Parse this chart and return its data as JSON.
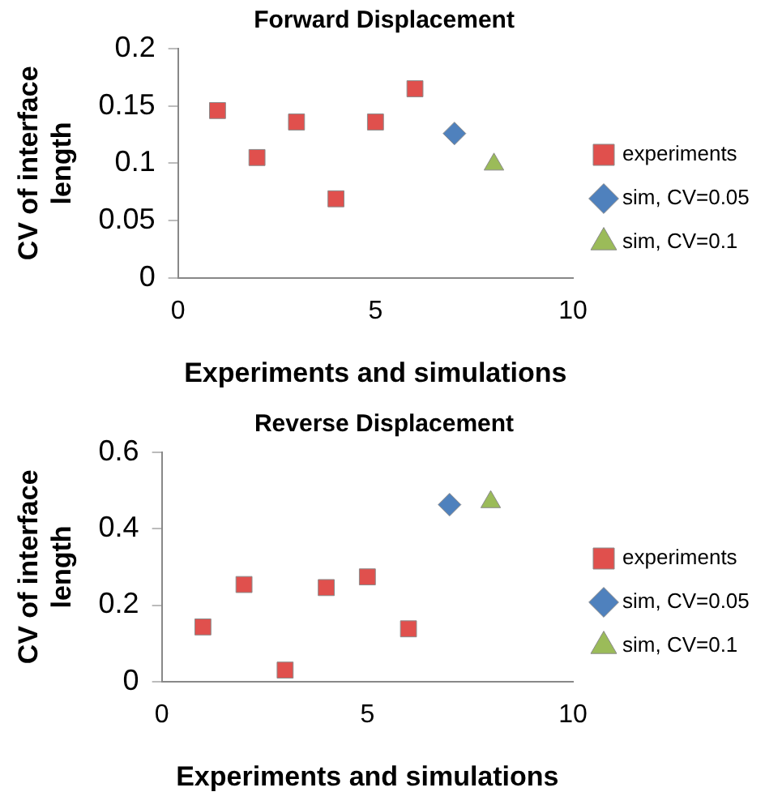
{
  "chart_data": [
    {
      "type": "scatter",
      "title": "Forward Displacement",
      "xlabel": "Experiments and simulations",
      "ylabel": "CV of interface length",
      "xlim": [
        0,
        10
      ],
      "xticks": [
        0,
        5,
        10
      ],
      "ylim": [
        0,
        0.2
      ],
      "yticks": [
        0,
        0.05,
        {
          "value": 0.1,
          "label": "0.1"
        },
        0.15,
        {
          "value": 0.2,
          "label": "0.2"
        }
      ],
      "grid": false,
      "legend": "right",
      "series": [
        {
          "name": "experiments",
          "color": "#e0504d",
          "marker": "square",
          "x": [
            1,
            2,
            3,
            4,
            5,
            6
          ],
          "values": [
            0.146,
            0.105,
            0.136,
            0.069,
            0.136,
            0.165
          ]
        },
        {
          "name": "sim, CV=0.05",
          "color": "#4f81bd",
          "marker": "diamond",
          "x": [
            7
          ],
          "values": [
            0.126
          ]
        },
        {
          "name": "sim, CV=0.1",
          "color": "#9bbb59",
          "marker": "triangle",
          "x": [
            8
          ],
          "values": [
            0.099
          ]
        }
      ]
    },
    {
      "type": "scatter",
      "title": "Reverse Displacement",
      "xlabel": "Experiments and simulations",
      "ylabel": "CV of interface length",
      "xlim": [
        0,
        10
      ],
      "xticks": [
        0,
        5,
        10
      ],
      "ylim": [
        0,
        0.6
      ],
      "yticks": [
        0,
        0.2,
        0.4,
        0.6
      ],
      "grid": false,
      "legend": "right",
      "series": [
        {
          "name": "experiments",
          "color": "#e0504d",
          "marker": "square",
          "x": [
            1,
            2,
            3,
            4,
            5,
            6
          ],
          "values": [
            0.143,
            0.254,
            0.03,
            0.246,
            0.274,
            0.138
          ]
        },
        {
          "name": "sim, CV=0.05",
          "color": "#4f81bd",
          "marker": "diamond",
          "x": [
            7
          ],
          "values": [
            0.463
          ]
        },
        {
          "name": "sim, CV=0.1",
          "color": "#9bbb59",
          "marker": "triangle",
          "x": [
            8
          ],
          "values": [
            0.47
          ]
        }
      ]
    }
  ]
}
